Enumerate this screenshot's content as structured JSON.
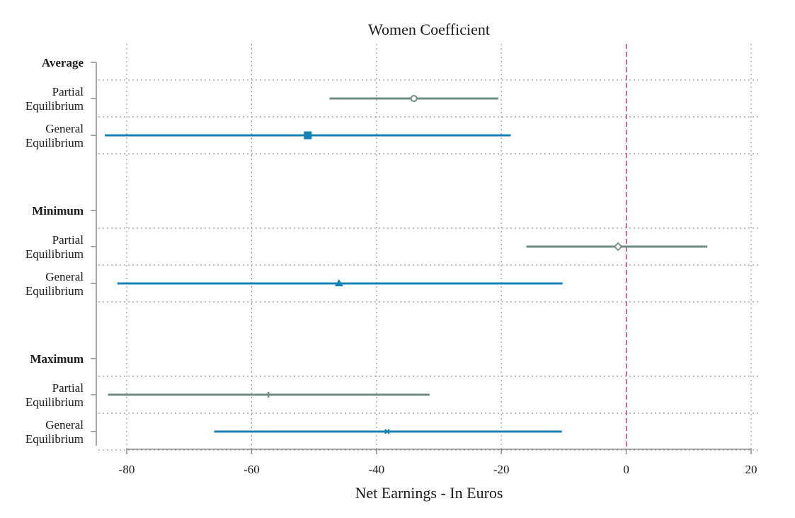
{
  "chart_data": {
    "type": "coefficient-plot",
    "title": "Women Coefficient",
    "xlabel": "Net Earnings - In Euros",
    "xlim": [
      -85,
      21
    ],
    "xticks": [
      -80,
      -60,
      -40,
      -20,
      0,
      20
    ],
    "reference_line": 0,
    "grid": true,
    "colors": {
      "partial": "#6e8b84",
      "general": "#1482b4",
      "reference": "#c2185b"
    },
    "groups": [
      {
        "name": "Average",
        "rows": [
          {
            "label": [
              "Partial",
              "Equilibrium"
            ],
            "series": "partial",
            "estimate": -34,
            "ci": [
              -47.5,
              -20.5
            ],
            "marker": "circle-open"
          },
          {
            "label": [
              "General",
              "Equilibrium"
            ],
            "series": "general",
            "estimate": -51,
            "ci": [
              -83.5,
              -18.5
            ],
            "marker": "square"
          }
        ]
      },
      {
        "name": "Minimum",
        "rows": [
          {
            "label": [
              "Partial",
              "Equilibrium"
            ],
            "series": "partial",
            "estimate": -1.3,
            "ci": [
              -16,
              13
            ],
            "marker": "diamond-open"
          },
          {
            "label": [
              "General",
              "Equilibrium"
            ],
            "series": "general",
            "estimate": -46,
            "ci": [
              -81.5,
              -10.2
            ],
            "marker": "triangle"
          }
        ]
      },
      {
        "name": "Maximum",
        "rows": [
          {
            "label": [
              "Partial",
              "Equilibrium"
            ],
            "series": "partial",
            "estimate": -57.3,
            "ci": [
              -83,
              -31.5
            ],
            "marker": "plus"
          },
          {
            "label": [
              "General",
              "Equilibrium"
            ],
            "series": "general",
            "estimate": -38.3,
            "ci": [
              -66,
              -10.3
            ],
            "marker": "x"
          }
        ]
      }
    ]
  }
}
